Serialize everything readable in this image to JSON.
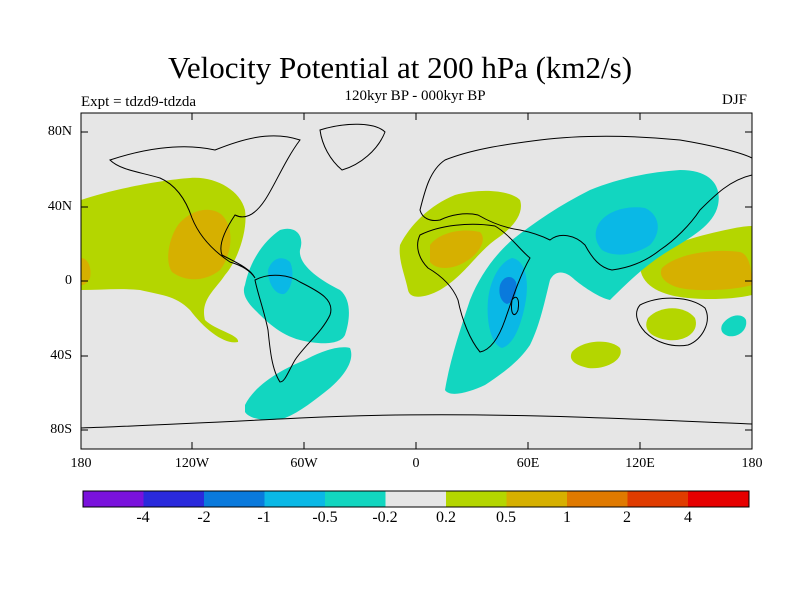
{
  "title": "Velocity Potential at 200 hPa (km2/s)",
  "subtitle": "120kyr BP - 000kyr BP",
  "experiment": "Expt = tdzd9-tdzda",
  "season": "DJF",
  "axes": {
    "lat_labels": [
      "80N",
      "40N",
      "0",
      "40S",
      "80S"
    ],
    "lon_labels": [
      "180",
      "120W",
      "60W",
      "0",
      "60E",
      "120E",
      "180"
    ]
  },
  "colorbar": {
    "labels": [
      "-4",
      "-2",
      "-1",
      "-0.5",
      "-0.2",
      "0.2",
      "0.5",
      "1",
      "2",
      "4"
    ],
    "colors": [
      "#7a12dc",
      "#2a2adc",
      "#0a7adc",
      "#0ab8e6",
      "#12d6c0",
      "#e6e6e6",
      "#b4d600",
      "#d6b000",
      "#e07a00",
      "#e03c00",
      "#e60000"
    ]
  },
  "colors": {
    "background": "#e6e6e6",
    "positive_weak": "#b4d600",
    "positive_mid": "#d6b000",
    "positive_strong": "#e07a00",
    "negative_weak": "#12d6c0",
    "negative_mid": "#0ab8e6",
    "negative_strong": "#0a7adc"
  }
}
